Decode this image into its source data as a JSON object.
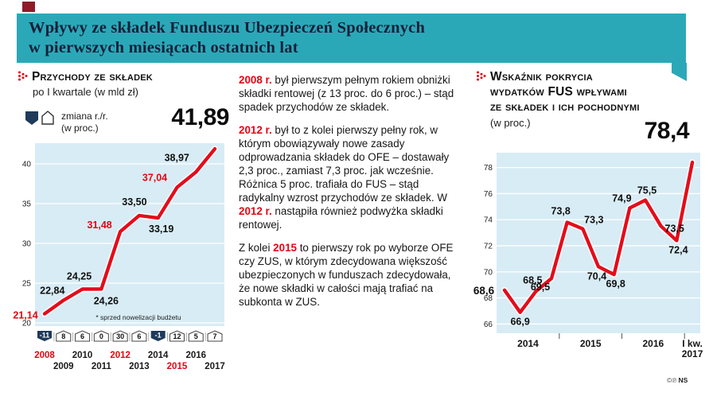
{
  "page": {
    "header": {
      "title_line1": "Wpływy ze składek Funduszu Ubezpieczeń Społecznych",
      "title_line2": "w pierwszych miesiącach ostatnich lat"
    },
    "credits": "NS",
    "copyright_marks": "©℗"
  },
  "left_panel": {
    "title": "Przychody ze składek",
    "subtitle": "po I kwartale (w mld zł)",
    "legend_line1": "zmiana r./r.",
    "legend_line2": "(w proc.)"
  },
  "article": {
    "paragraphs": [
      {
        "segments": [
          {
            "text": "2008 r.",
            "style": "red"
          },
          {
            "text": " był pierwszym pełnym rokiem obniżki składki rentowej (z 13 proc. do 6 proc.) – stąd spadek przychodów ze składek.",
            "style": "plain"
          }
        ]
      },
      {
        "segments": [
          {
            "text": "2012 r.",
            "style": "red"
          },
          {
            "text": " był to z kolei pierwszy pełny rok, w którym obowiązywały nowe zasady odprowadzania składek do OFE – dostawały 2,3 proc., zamiast 7,3 proc. jak wcześnie. Różnica 5 proc. trafiała do FUS – stąd radykalny wzrost przychodów ze składek. W ",
            "style": "plain"
          },
          {
            "text": "2012 r.",
            "style": "red"
          },
          {
            "text": " nastąpiła również podwyżka składki rentowej.",
            "style": "plain"
          }
        ]
      },
      {
        "segments": [
          {
            "text": "Z kolei ",
            "style": "plain"
          },
          {
            "text": "2015",
            "style": "red"
          },
          {
            "text": " to pierwszy rok po wyborze OFE czy ZUS, w którym zdecydowana większość ubezpieczonych w funduszach zdecydowała, że nowe składki w całości mają trafiać na subkonta w ZUS.",
            "style": "plain"
          }
        ]
      }
    ]
  },
  "right_panel": {
    "title_lines": [
      "Wskaźnik pokrycia",
      "wydatków FUS wpływami",
      "ze składek i ich pochodnymi"
    ],
    "subtitle": "(w proc.)"
  },
  "chart_data": [
    {
      "type": "line",
      "title": "Przychody ze składek po I kwartale (w mld zł)",
      "unit": "mld zł",
      "categories": [
        "2008",
        "2009",
        "2010",
        "2011",
        "2012",
        "2013",
        "2014",
        "2015",
        "2016",
        "2017"
      ],
      "values": [
        21.14,
        22.84,
        24.25,
        24.26,
        31.48,
        33.5,
        33.19,
        37.04,
        38.97,
        41.89
      ],
      "labels": [
        "21,14",
        "22,84",
        "24,25",
        "24,26",
        "31,48",
        "33,50",
        "33,19",
        "37,04",
        "38,97",
        "41,89"
      ],
      "red_label_indices": [
        0,
        4,
        7
      ],
      "highlight_years": [
        "2008",
        "2012",
        "2015"
      ],
      "yoy_change_pct": [
        -11,
        8,
        6,
        0,
        30,
        6,
        -1,
        12,
        5,
        7
      ],
      "legend": "zmiana r./r. (w proc.)",
      "yticks": [
        20,
        25,
        30,
        35,
        40
      ],
      "ylim": [
        20,
        42.8
      ],
      "grid": true,
      "footnote": "* sprzed nowelizacji budżetu"
    },
    {
      "type": "line",
      "title": "Wskaźnik pokrycia wydatków FUS wpływami ze składek i ich pochodnymi (w proc.)",
      "unit": "proc.",
      "x_groups": [
        {
          "label": "2014",
          "from": 0,
          "to": 3
        },
        {
          "label": "2015",
          "from": 4,
          "to": 7
        },
        {
          "label": "2016",
          "from": 8,
          "to": 11
        },
        {
          "label": "I kw.",
          "label2": "2017",
          "from": 12,
          "to": 12
        }
      ],
      "values": [
        68.6,
        66.9,
        68.5,
        69.5,
        73.8,
        73.3,
        70.4,
        69.8,
        74.9,
        75.5,
        73.5,
        72.4,
        78.4
      ],
      "labels": [
        "68,6",
        "66,9",
        "68,5",
        "69,5",
        "73,8",
        "73,3",
        "70,4",
        "69,8",
        "74,9",
        "75,5",
        "73,5",
        "72,4",
        "78,4"
      ],
      "red_label_indices": [],
      "yticks": [
        66,
        68,
        70,
        72,
        74,
        76,
        78
      ],
      "ylim": [
        65.6,
        79.4
      ],
      "grid": true
    }
  ],
  "colors": {
    "header_teal": "#2ba8b8",
    "accent_red": "#e30613",
    "line_red": "#e30d1c",
    "plot_bg": "#d8ecf5",
    "badge_navy": "#1f3a5a"
  }
}
